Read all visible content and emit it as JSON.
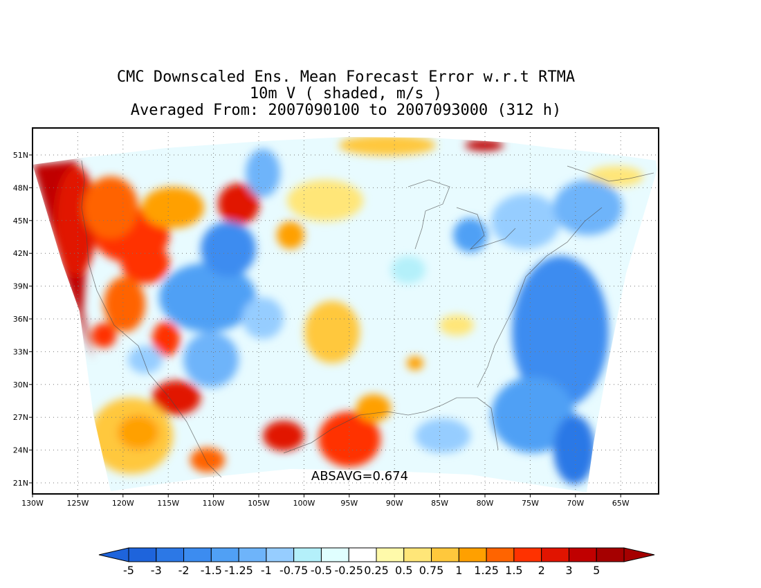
{
  "title": {
    "line1": "CMC Downscaled Ens. Mean Forecast Error w.r.t RTMA",
    "line2": "10m V ( shaded, m/s )",
    "line3": "Averaged From: 2007090100 to 2007093000 (312 h)"
  },
  "annotation": "ABSAVG=0.674",
  "axes": {
    "lat_labels": [
      "51N",
      "48N",
      "45N",
      "42N",
      "39N",
      "36N",
      "33N",
      "30N",
      "27N",
      "24N",
      "21N"
    ],
    "lon_labels": [
      "130W",
      "125W",
      "120W",
      "115W",
      "110W",
      "105W",
      "100W",
      "95W",
      "90W",
      "85W",
      "80W",
      "75W",
      "70W",
      "65W"
    ]
  },
  "colorbar": {
    "labels": [
      "-5",
      "-3",
      "-2",
      "-1.5",
      "-1.25",
      "-1",
      "-0.75",
      "-0.5",
      "-0.25",
      "0.25",
      "0.5",
      "0.75",
      "1",
      "1.25",
      "1.5",
      "2",
      "3",
      "5"
    ],
    "colors": [
      "#1e64dc",
      "#2c78e6",
      "#3c8cf0",
      "#50a0f5",
      "#6eb4fa",
      "#96cdff",
      "#b4f0fa",
      "#e0ffff",
      "#ffffff",
      "#fffaaa",
      "#ffe678",
      "#ffc83c",
      "#ffa000",
      "#ff6400",
      "#ff3200",
      "#e11400",
      "#c00000",
      "#a50000"
    ],
    "below_color": "#1e64dc",
    "above_color": "#a50000"
  },
  "legend": {
    "blue_strong": "#2c78e6",
    "blue_mid": "#6eb4fa",
    "blue_light": "#b4f0fa",
    "yellow": "#ffe678",
    "orange": "#ffa000",
    "red": "#e11400",
    "dark_red": "#c00000"
  }
}
